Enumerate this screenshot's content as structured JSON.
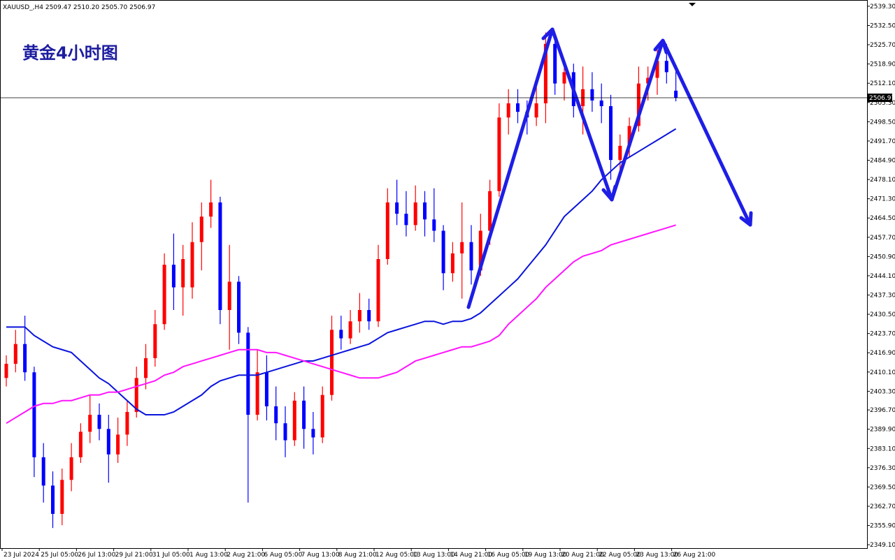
{
  "chart_data": {
    "type": "candlestick",
    "header": "XAUUSD_,H4  2509.47 2510.20 2505.70 2506.97",
    "title": "黄金4小时图",
    "up_color": "#ff0000",
    "down_color": "#0000ff",
    "categories": [
      "23 Jul 2024",
      null,
      null,
      null,
      "25 Jul 05:00",
      null,
      null,
      null,
      "26 Jul 13:00",
      null,
      null,
      null,
      "29 Jul 21:00",
      null,
      null,
      null,
      "31 Jul 05:00",
      null,
      null,
      null,
      "1 Aug 13:00",
      null,
      null,
      null,
      "2 Aug 21:00",
      null,
      null,
      null,
      "6 Aug 05:00",
      null,
      null,
      null,
      "7 Aug 13:00",
      null,
      null,
      null,
      "8 Aug 21:00",
      null,
      null,
      null,
      "12 Aug 05:00",
      null,
      null,
      null,
      "13 Aug 13:00",
      null,
      null,
      null,
      "14 Aug 21:00",
      null,
      null,
      null,
      "16 Aug 05:00",
      null,
      null,
      null,
      "19 Aug 13:00",
      null,
      null,
      null,
      "20 Aug 21:00",
      null,
      null,
      null,
      "22 Aug 05:00",
      null,
      null,
      null,
      "23 Aug 13:00",
      null,
      null,
      null,
      "26 Aug 21:00"
    ],
    "open": [
      2408,
      2413,
      2420,
      2410,
      2380,
      2370,
      2360,
      2372,
      2380,
      2389,
      2395,
      2390,
      2381,
      2388,
      2396,
      2408,
      2415,
      2427,
      2448,
      2440,
      2440,
      2456,
      2465,
      2470,
      2432,
      2442,
      2424,
      2395,
      2410,
      2398,
      2392,
      2386,
      2400,
      2390,
      2387,
      2402,
      2425,
      2422,
      2428,
      2432,
      2428,
      2450,
      2470,
      2466,
      2462,
      2470,
      2464,
      2460,
      2445,
      2452,
      2456,
      2446,
      2460,
      2474,
      2500,
      2505,
      2502,
      2500,
      2505,
      2526,
      2512,
      2516,
      2504,
      2510,
      2506,
      2504,
      2485,
      2490,
      2497,
      2512,
      2514,
      2520,
      2509.47
    ],
    "high": [
      2416,
      2425,
      2430,
      2412,
      2385,
      2375,
      2376,
      2385,
      2392,
      2402,
      2399,
      2395,
      2394,
      2400,
      2412,
      2420,
      2432,
      2452,
      2459,
      2455,
      2463,
      2470,
      2478,
      2472,
      2455,
      2444,
      2426,
      2418,
      2416,
      2405,
      2398,
      2403,
      2405,
      2396,
      2405,
      2430,
      2430,
      2432,
      2438,
      2436,
      2455,
      2475,
      2478,
      2474,
      2476,
      2474,
      2475,
      2462,
      2456,
      2470,
      2462,
      2466,
      2478,
      2505,
      2510,
      2510,
      2506,
      2512,
      2530,
      2529,
      2520,
      2519,
      2518,
      2516,
      2512,
      2508,
      2494,
      2500,
      2518,
      2518,
      2524,
      2526,
      2518
    ],
    "low": [
      2405,
      2410,
      2407,
      2373,
      2364,
      2355,
      2356,
      2368,
      2378,
      2385,
      2386,
      2371,
      2378,
      2384,
      2394,
      2404,
      2412,
      2425,
      2432,
      2430,
      2436,
      2446,
      2461,
      2427,
      2418,
      2420,
      2364,
      2393,
      2393,
      2386,
      2380,
      2384,
      2383,
      2381,
      2385,
      2400,
      2418,
      2420,
      2424,
      2425,
      2426,
      2448,
      2462,
      2458,
      2460,
      2458,
      2456,
      2439,
      2442,
      2436,
      2441,
      2444,
      2455,
      2472,
      2494,
      2498,
      2494,
      2497,
      2498,
      2508,
      2506,
      2500,
      2494,
      2502,
      2498,
      2478,
      2481,
      2486,
      2495,
      2506,
      2508,
      2512,
      2505.7
    ],
    "close": [
      2413,
      2420,
      2410,
      2380,
      2370,
      2360,
      2372,
      2380,
      2389,
      2395,
      2390,
      2381,
      2388,
      2396,
      2408,
      2415,
      2427,
      2448,
      2440,
      2450,
      2456,
      2465,
      2470,
      2432,
      2442,
      2424,
      2395,
      2410,
      2398,
      2392,
      2386,
      2400,
      2390,
      2387,
      2402,
      2425,
      2422,
      2428,
      2432,
      2428,
      2450,
      2470,
      2466,
      2462,
      2470,
      2464,
      2460,
      2445,
      2452,
      2456,
      2446,
      2460,
      2474,
      2500,
      2505,
      2502,
      2500,
      2505,
      2526,
      2512,
      2516,
      2504,
      2510,
      2506,
      2504,
      2485,
      2490,
      2497,
      2512,
      2514,
      2520,
      2516,
      2506.97
    ],
    "series": [
      {
        "color": "#0a14dc",
        "values": [
          2426,
          2426,
          2426,
          2423,
          2421,
          2419,
          2418,
          2417,
          2414,
          2411,
          2408,
          2406,
          2403,
          2400,
          2397,
          2395,
          2395,
          2395,
          2396,
          2398,
          2400,
          2402,
          2405,
          2407,
          2408,
          2409,
          2409,
          2409,
          2410,
          2411,
          2412,
          2413,
          2414,
          2414,
          2415,
          2416,
          2417,
          2418,
          2419,
          2420,
          2422,
          2424,
          2425,
          2426,
          2427,
          2428,
          2428,
          2427,
          2428,
          2428,
          2429,
          2431,
          2434,
          2437,
          2440,
          2443,
          2447,
          2451,
          2455,
          2460,
          2465,
          2468,
          2471,
          2474,
          2478,
          2481,
          2484,
          2486,
          2488,
          2490,
          2492,
          2494,
          2496
        ]
      },
      {
        "color": "#ff14ff",
        "values": [
          2392,
          2394,
          2396,
          2398,
          2399,
          2399,
          2400,
          2400,
          2401,
          2402,
          2402,
          2403,
          2403,
          2404,
          2405,
          2406,
          2407,
          2409,
          2410,
          2412,
          2413,
          2414,
          2415,
          2416,
          2417,
          2418,
          2418,
          2418,
          2417,
          2417,
          2416,
          2415,
          2414,
          2413,
          2412,
          2411,
          2410,
          2409,
          2408,
          2408,
          2408,
          2409,
          2410,
          2412,
          2414,
          2415,
          2416,
          2417,
          2418,
          2419,
          2419,
          2420,
          2421,
          2423,
          2427,
          2430,
          2433,
          2436,
          2440,
          2443,
          2446,
          2449,
          2451,
          2452,
          2453,
          2455,
          2456,
          2457,
          2458,
          2459,
          2460,
          2461,
          2462
        ]
      }
    ],
    "current_price": 2506.97,
    "ylim": [
      2347.9,
      2541.5
    ],
    "yticks": [
      {
        "value": 2539.3,
        "label": "2539.30"
      },
      {
        "value": 2532.5,
        "label": "2532.50"
      },
      {
        "value": 2525.7,
        "label": "2525.70"
      },
      {
        "value": 2518.9,
        "label": "2518.90"
      },
      {
        "value": 2512.1,
        "label": "2512.10"
      },
      {
        "value": 2505.3,
        "label": "2505.30"
      },
      {
        "value": 2498.5,
        "label": "2498.50"
      },
      {
        "value": 2491.7,
        "label": "2491.70"
      },
      {
        "value": 2484.9,
        "label": "2484.90"
      },
      {
        "value": 2478.1,
        "label": "2478.10"
      },
      {
        "value": 2471.3,
        "label": "2471.30"
      },
      {
        "value": 2464.5,
        "label": "2464.50"
      },
      {
        "value": 2457.7,
        "label": "2457.70"
      },
      {
        "value": 2450.9,
        "label": "2450.90"
      },
      {
        "value": 2444.1,
        "label": "2444.10"
      },
      {
        "value": 2437.3,
        "label": "2437.30"
      },
      {
        "value": 2430.5,
        "label": "2430.50"
      },
      {
        "value": 2423.7,
        "label": "2423.70"
      },
      {
        "value": 2416.9,
        "label": "2416.90"
      },
      {
        "value": 2410.1,
        "label": "2410.10"
      },
      {
        "value": 2403.3,
        "label": "2403.30"
      },
      {
        "value": 2396.7,
        "label": "2396.70"
      },
      {
        "value": 2389.9,
        "label": "2389.90"
      },
      {
        "value": 2383.1,
        "label": "2383.10"
      },
      {
        "value": 2376.3,
        "label": "2376.30"
      },
      {
        "value": 2369.5,
        "label": "2369.50"
      },
      {
        "value": 2362.7,
        "label": "2362.70"
      },
      {
        "value": 2355.9,
        "label": "2355.90"
      },
      {
        "value": 2349.1,
        "label": "2349.10"
      }
    ]
  }
}
